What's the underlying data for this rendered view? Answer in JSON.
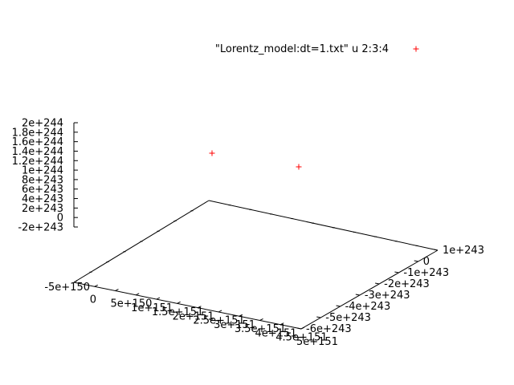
{
  "chart_data": {
    "type": "scatter",
    "legend": {
      "label": "\"Lorentz_model:dt=1.txt\" u 2:3:4",
      "marker": "+",
      "position": "top-right"
    },
    "series": [
      {
        "name": "\"Lorentz_model:dt=1.txt\" u 2:3:4",
        "color": "#ff0000",
        "marker": "+",
        "points": [
          {
            "x": 0,
            "y": 0,
            "z": 1.6e+244
          },
          {
            "x": 0,
            "y": 0,
            "z": 1e+244
          }
        ]
      }
    ],
    "x_axis": {
      "ticks": [
        "-5e+150",
        "0",
        "5e+150",
        "1e+151",
        "1.5e+151",
        "2e+151",
        "2.5e+151",
        "3e+151",
        "3.5e+151",
        "4e+151",
        "4.5e+151",
        "5e+151"
      ]
    },
    "y_axis": {
      "ticks": [
        "-6e+243",
        "-5e+243",
        "-4e+243",
        "-3e+243",
        "-2e+243",
        "-1e+243",
        "0",
        "1e+243"
      ]
    },
    "z_axis": {
      "ticks": [
        "2e+244",
        "1.8e+244",
        "1.6e+244",
        "1.4e+244",
        "1.2e+244",
        "1e+244",
        "8e+243",
        "6e+243",
        "4e+243",
        "2e+243",
        "0",
        "-2e+243"
      ],
      "range": [
        -2e+243,
        2e+244
      ]
    },
    "grid": false,
    "view": "3d"
  },
  "colors": {
    "axis": "#000000",
    "point": "#ff0000",
    "background": "#ffffff"
  }
}
